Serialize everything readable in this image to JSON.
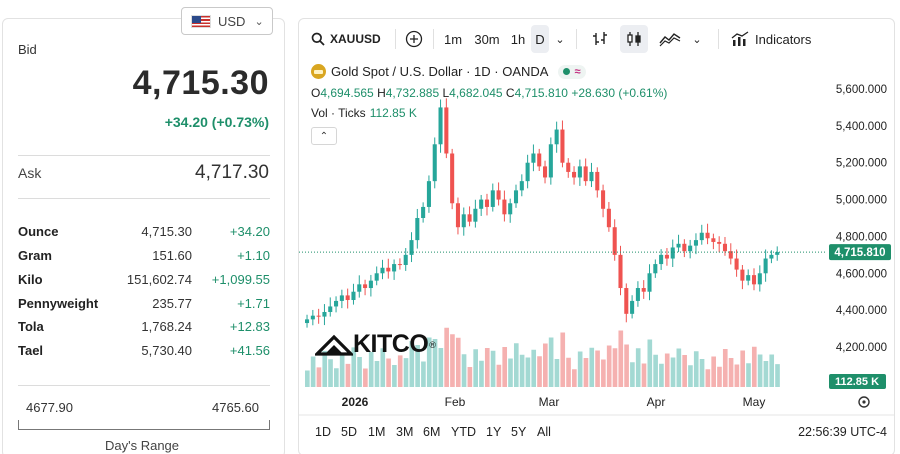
{
  "quote": {
    "currency": "USD",
    "bid_label": "Bid",
    "bid": "4,715.30",
    "bid_change": "+34.20 (+0.73%)",
    "ask_label": "Ask",
    "ask": "4,717.30",
    "units": [
      {
        "name": "Ounce",
        "price": "4,715.30",
        "change": "+34.20"
      },
      {
        "name": "Gram",
        "price": "151.60",
        "change": "+1.10"
      },
      {
        "name": "Kilo",
        "price": "151,602.74",
        "change": "+1,099.55"
      },
      {
        "name": "Pennyweight",
        "price": "235.77",
        "change": "+1.71"
      },
      {
        "name": "Tola",
        "price": "1,768.24",
        "change": "+12.83"
      },
      {
        "name": "Tael",
        "price": "5,730.40",
        "change": "+41.56"
      }
    ],
    "range_low": "4677.90",
    "range_high": "4765.60",
    "range_title": "Day's Range"
  },
  "toolbar": {
    "symbol": "XAUUSD",
    "intervals": [
      "1m",
      "30m",
      "1h",
      "D"
    ],
    "active_interval": "D",
    "indicators_label": "Indicators"
  },
  "legend": {
    "title": "Gold Spot / U.S. Dollar · 1D · OANDA",
    "o_key": "O",
    "o": "4,694.565",
    "h_key": "H",
    "h": "4,732.885",
    "l_key": "L",
    "l": "4,682.045",
    "c_key": "C",
    "c": "4,715.810",
    "change": "+28.630 (+0.61%)",
    "vol_label": "Vol · Ticks",
    "vol_value": "112.85 K"
  },
  "logo": "KITCO",
  "bottom": {
    "ranges": [
      "1D",
      "5D",
      "1M",
      "3M",
      "6M",
      "YTD",
      "1Y",
      "5Y",
      "All"
    ],
    "clock": "22:56:39 UTC-4"
  },
  "colors": {
    "up": "#26a69a",
    "down": "#ef5350",
    "vol_up": "#a3d9d3",
    "vol_down": "#f5b1b0",
    "last_price_bg": "#1e8f6a"
  },
  "chart_data": {
    "type": "candlestick",
    "instrument": "XAUUSD",
    "timeframe": "1D",
    "y_ticks": [
      "5,600.000",
      "5,400.000",
      "5,200.000",
      "5,000.000",
      "4,800.000",
      "4,600.000",
      "4,400.000",
      "4,200.000"
    ],
    "y_tick_values": [
      5600,
      5400,
      5200,
      5000,
      4800,
      4600,
      4400,
      4200
    ],
    "ylim": [
      4100,
      5700
    ],
    "x_ticks": [
      "2026",
      "Feb",
      "Mar",
      "Apr",
      "May"
    ],
    "last_price_label": "4,715.810",
    "last_volume_label": "112.85 K",
    "closes": [
      4350,
      4370,
      4365,
      4390,
      4420,
      4450,
      4480,
      4455,
      4500,
      4540,
      4520,
      4560,
      4600,
      4630,
      4610,
      4650,
      4645,
      4700,
      4780,
      4900,
      4960,
      5100,
      5300,
      5500,
      5250,
      4980,
      4850,
      4920,
      4880,
      4950,
      5000,
      4960,
      5050,
      5000,
      4920,
      4980,
      5050,
      5100,
      5200,
      5250,
      5180,
      5120,
      5300,
      5380,
      5200,
      5150,
      5120,
      5180,
      5100,
      5150,
      5050,
      4950,
      4850,
      4700,
      4520,
      4380,
      4450,
      4520,
      4500,
      4600,
      4650,
      4700,
      4680,
      4740,
      4760,
      4720,
      4750,
      4780,
      4820,
      4790,
      4770,
      4760,
      4720,
      4680,
      4620,
      4560,
      4590,
      4540,
      4600,
      4680,
      4700,
      4715
    ]
  }
}
